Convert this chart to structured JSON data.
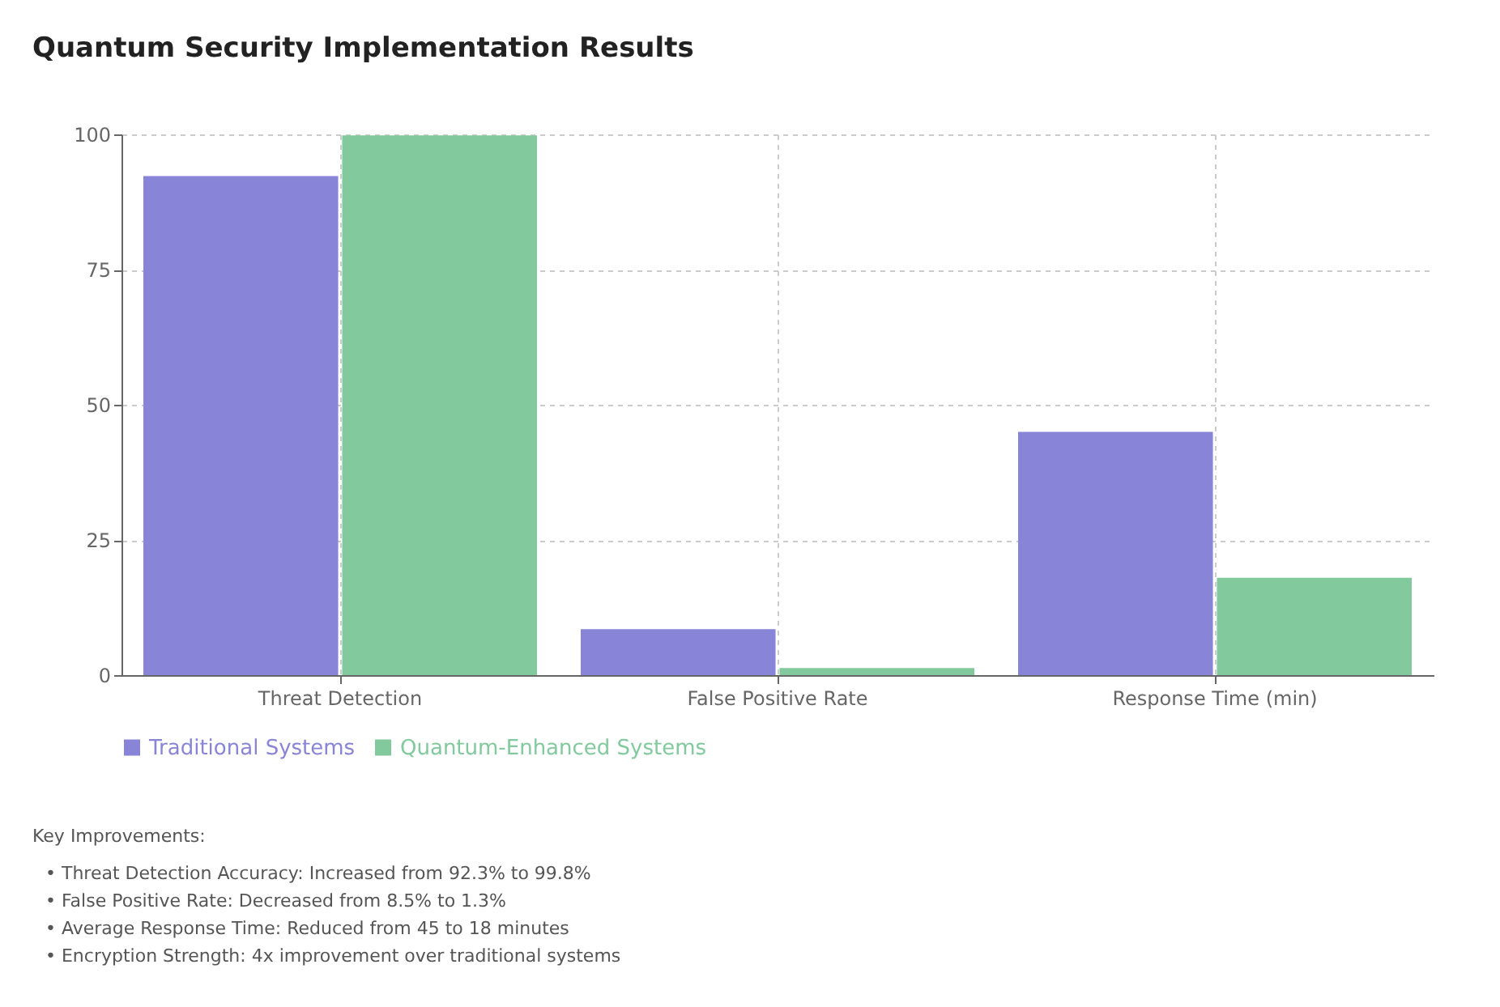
{
  "chart_data": {
    "type": "bar",
    "title": "Quantum Security Implementation Results",
    "categories": [
      "Threat Detection",
      "False Positive Rate",
      "Response Time (min)"
    ],
    "series": [
      {
        "name": "Traditional Systems",
        "color": "#8884d8",
        "values": [
          92.3,
          8.5,
          45
        ]
      },
      {
        "name": "Quantum-Enhanced Systems",
        "color": "#82ca9d",
        "values": [
          99.8,
          1.3,
          18
        ]
      }
    ],
    "ylim": [
      0,
      100
    ],
    "yticks": [
      0,
      25,
      50,
      75,
      100
    ],
    "grid": true,
    "legend": "bottom",
    "annotations": [
      "Key Improvements:",
      "• Threat Detection Accuracy: Increased from 92.3% to 99.8%",
      "• False Positive Rate: Decreased from 8.5% to 1.3%",
      "• Average Response Time: Reduced from 45 to 18 minutes",
      "• Encryption Strength: 4x improvement over traditional systems"
    ]
  }
}
